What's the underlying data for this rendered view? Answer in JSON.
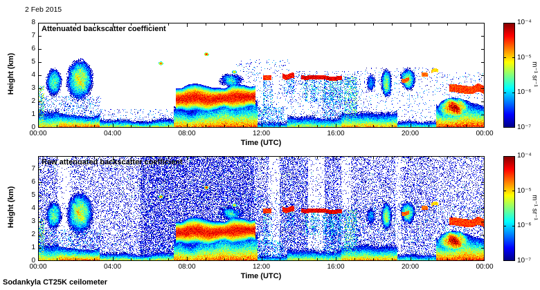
{
  "header": {
    "date": "2 Feb 2015"
  },
  "footer": {
    "instrument": "Sodankyla CT25K ceilometer"
  },
  "colors": {
    "plot_border": "#000000",
    "background": "#ffffff"
  },
  "chart_data": [
    {
      "type": "heatmap",
      "title": "Attenuated backscatter coefficient",
      "xlabel": "Time (UTC)",
      "ylabel": "Height (km)",
      "x_range_hours": [
        0,
        24
      ],
      "y_range_km": [
        0,
        8
      ],
      "x_tick_labels": [
        "00:00",
        "04:00",
        "08:00",
        "12:00",
        "16:00",
        "20:00",
        "00:00"
      ],
      "x_tick_hours": [
        0,
        4,
        8,
        12,
        16,
        20,
        24
      ],
      "y_tick_values": [
        0,
        1,
        2,
        3,
        4,
        5,
        6,
        7,
        8
      ],
      "colormap": "jet",
      "value_scale": "log10",
      "value_range": [
        -7,
        -4
      ],
      "colorbar": {
        "tick_labels": [
          "10⁻⁴",
          "10⁻⁵",
          "10⁻⁶",
          "10⁻⁷"
        ],
        "tick_levels": [
          -4,
          -5,
          -6,
          -7
        ],
        "unit": "m⁻¹ sr⁻¹"
      },
      "features": [
        {
          "type": "bl",
          "t0": 0,
          "t1": 1.1,
          "htop": 1.4,
          "val": -4.6,
          "seed": 1
        },
        {
          "type": "bl",
          "t0": 1.1,
          "t1": 3.3,
          "htop": 1.1,
          "val": -4.15,
          "seed": 2
        },
        {
          "type": "bl",
          "t0": 3.3,
          "t1": 7.3,
          "htop": 0.75,
          "val": -4.7,
          "seed": 3
        },
        {
          "type": "bl",
          "t0": 7.3,
          "t1": 9.0,
          "htop": 1.7,
          "val": -4.3,
          "seed": 4
        },
        {
          "type": "bl",
          "t0": 9.0,
          "t1": 11.8,
          "htop": 2.1,
          "val": -4.2,
          "seed": 5
        },
        {
          "type": "bl",
          "t0": 11.8,
          "t1": 13.4,
          "htop": 0.9,
          "val": -5.3,
          "seed": 6
        },
        {
          "type": "bl",
          "t0": 13.4,
          "t1": 16.3,
          "htop": 1.15,
          "val": -4.75,
          "seed": 7
        },
        {
          "type": "bl",
          "t0": 16.3,
          "t1": 19.3,
          "htop": 1.25,
          "val": -4.4,
          "seed": 8
        },
        {
          "type": "bl",
          "t0": 19.3,
          "t1": 21.4,
          "htop": 0.85,
          "val": -5.1,
          "seed": 9
        },
        {
          "type": "bl",
          "t0": 21.4,
          "t1": 24,
          "htop": 1.9,
          "val": -4.05,
          "seed": 10
        },
        {
          "type": "column",
          "t0": 0.0,
          "t1": 0.35,
          "h0": 0,
          "h1": 3.2,
          "p": 0.5,
          "val": -5.8,
          "seed": 38
        },
        {
          "type": "blob",
          "t0": 0.35,
          "t1": 1.35,
          "h0": 2.2,
          "h1": 4.7,
          "val": -5.1,
          "seed": 11
        },
        {
          "type": "blob",
          "t0": 1.45,
          "t1": 3.0,
          "h0": 1.9,
          "h1": 5.3,
          "val": -4.8,
          "seed": 12
        },
        {
          "type": "band",
          "t0": 7.4,
          "t1": 11.7,
          "h0": 1.3,
          "h1": 3.1,
          "val": -4.15,
          "seed": 13
        },
        {
          "type": "blob",
          "t0": 9.5,
          "t1": 11.3,
          "h0": 2.9,
          "h1": 4.3,
          "val": -5.5,
          "seed": 14
        },
        {
          "type": "line",
          "t0": 12.1,
          "t1": 12.55,
          "h": 3.75,
          "w": 0.18,
          "val": -4.3,
          "seed": 15
        },
        {
          "type": "virga",
          "t0": 12.1,
          "t1": 12.6,
          "h0": 1.2,
          "h1": 3.7,
          "val": -6.2,
          "seed": 40
        },
        {
          "type": "line",
          "t0": 13.15,
          "t1": 13.75,
          "h": 3.95,
          "w": 0.2,
          "val": -4.2,
          "seed": 16
        },
        {
          "type": "virga",
          "t0": 13.2,
          "t1": 13.75,
          "h0": 2.6,
          "h1": 3.9,
          "val": -6.3,
          "seed": 41
        },
        {
          "type": "line",
          "t0": 14.15,
          "t1": 16.35,
          "h": 3.85,
          "w": 0.16,
          "val": -4.1,
          "seed": 17
        },
        {
          "type": "virga",
          "t0": 14.2,
          "t1": 16.3,
          "h0": 2.0,
          "h1": 3.8,
          "val": -6.1,
          "seed": 18
        },
        {
          "type": "column",
          "t0": 16.45,
          "t1": 17.15,
          "h0": 0,
          "h1": 3.9,
          "p": 0.5,
          "val": -6.0,
          "seed": 19
        },
        {
          "type": "blob",
          "t0": 17.55,
          "t1": 18.25,
          "h0": 2.5,
          "h1": 4.4,
          "val": -5.5,
          "seed": 20
        },
        {
          "type": "blob",
          "t0": 18.4,
          "t1": 19.05,
          "h0": 2.1,
          "h1": 4.7,
          "val": -5.2,
          "seed": 21
        },
        {
          "type": "blob",
          "t0": 19.4,
          "t1": 20.35,
          "h0": 2.7,
          "h1": 4.7,
          "val": -5.0,
          "seed": 22
        },
        {
          "type": "line",
          "t0": 19.55,
          "t1": 19.95,
          "h": 3.6,
          "w": 0.15,
          "val": -4.45,
          "seed": 23
        },
        {
          "type": "line",
          "t0": 20.6,
          "t1": 20.95,
          "h": 4.0,
          "w": 0.15,
          "val": -4.5,
          "seed": 24
        },
        {
          "type": "line",
          "t0": 21.15,
          "t1": 21.5,
          "h": 4.3,
          "w": 0.13,
          "val": -4.8,
          "seed": 25
        },
        {
          "type": "line",
          "t0": 22.1,
          "t1": 24,
          "h": 2.95,
          "w": 0.3,
          "val": -4.35,
          "seed": 26
        },
        {
          "type": "blob",
          "t0": 21.5,
          "t1": 23.2,
          "h0": 0.7,
          "h1": 2.3,
          "val": -4.0,
          "seed": 27
        },
        {
          "type": "speck",
          "t": 6.6,
          "h": 4.9,
          "val": -4.6,
          "seed": 28
        },
        {
          "type": "speck",
          "t": 9.05,
          "h": 5.6,
          "val": -4.4,
          "seed": 29
        },
        {
          "type": "speck",
          "t": 10.55,
          "h": 4.25,
          "val": -4.9,
          "seed": 30
        },
        {
          "type": "speckle",
          "t0": 0,
          "t1": 3.4,
          "h0": 0,
          "h1": 2.4,
          "p": 0.22,
          "val": -6.5,
          "seed": 31
        },
        {
          "type": "speckle",
          "t0": 3.4,
          "t1": 7.4,
          "h0": 0,
          "h1": 1.4,
          "p": 0.12,
          "val": -6.6,
          "seed": 39
        },
        {
          "type": "speckle",
          "t0": 10.6,
          "t1": 13.6,
          "h0": 0,
          "h1": 5.2,
          "p": 0.07,
          "val": -6.6,
          "seed": 32
        },
        {
          "type": "speckle",
          "t0": 11.5,
          "t1": 13.2,
          "h0": 0,
          "h1": 1.6,
          "p": 0.3,
          "val": -6.3,
          "seed": 33
        },
        {
          "type": "speckle",
          "t0": 13.6,
          "t1": 17.6,
          "h0": 0,
          "h1": 4.3,
          "p": 0.1,
          "val": -6.6,
          "seed": 34
        },
        {
          "type": "speckle",
          "t0": 15.3,
          "t1": 16.4,
          "h0": 0,
          "h1": 3.8,
          "p": 0.3,
          "val": -6.4,
          "seed": 35
        },
        {
          "type": "speckle",
          "t0": 17.6,
          "t1": 21.4,
          "h0": 0,
          "h1": 4.6,
          "p": 0.06,
          "val": -6.6,
          "seed": 36
        },
        {
          "type": "speckle",
          "t0": 21.4,
          "t1": 24,
          "h0": 2.2,
          "h1": 4.2,
          "p": 0.08,
          "val": -6.5,
          "seed": 37
        }
      ]
    },
    {
      "type": "heatmap",
      "title": "Raw attenuated backscatter coefficient",
      "xlabel": "Time (UTC)",
      "ylabel": "Height (km)",
      "x_range_hours": [
        0,
        24
      ],
      "y_range_km": [
        0,
        8
      ],
      "x_tick_labels": [
        "00:00",
        "04:00",
        "08:00",
        "12:00",
        "16:00",
        "20:00",
        "00:00"
      ],
      "x_tick_hours": [
        0,
        4,
        8,
        12,
        16,
        20,
        24
      ],
      "y_tick_values": [
        0,
        1,
        2,
        3,
        4,
        5,
        6,
        7
      ],
      "colormap": "jet",
      "value_scale": "log10",
      "value_range": [
        -7,
        -4
      ],
      "colorbar": {
        "tick_labels": [
          "10⁻⁴",
          "10⁻⁵",
          "10⁻⁶",
          "10⁻⁷"
        ],
        "tick_levels": [
          -4,
          -5,
          -6,
          -7
        ],
        "unit": "m⁻¹ sr⁻¹"
      },
      "features_same_as_panel": 0,
      "noise_segments": [
        {
          "t0": 0,
          "t1": 1.05,
          "p": 0.32
        },
        {
          "t0": 1.05,
          "t1": 1.7,
          "p": 0.05
        },
        {
          "t0": 1.7,
          "t1": 5.5,
          "p": 0.24
        },
        {
          "t0": 5.5,
          "t1": 11.6,
          "p": 0.55
        },
        {
          "t0": 11.6,
          "t1": 12.4,
          "p": 0.32
        },
        {
          "t0": 12.4,
          "t1": 13.0,
          "p": 0.07
        },
        {
          "t0": 13.0,
          "t1": 14.5,
          "p": 0.42
        },
        {
          "t0": 14.5,
          "t1": 15.4,
          "p": 0.06
        },
        {
          "t0": 15.4,
          "t1": 16.3,
          "p": 0.38
        },
        {
          "t0": 16.3,
          "t1": 16.8,
          "p": 0.08
        },
        {
          "t0": 16.8,
          "t1": 19.2,
          "p": 0.3
        },
        {
          "t0": 19.2,
          "t1": 19.5,
          "p": 0.1
        },
        {
          "t0": 19.5,
          "t1": 21.3,
          "p": 0.28
        },
        {
          "t0": 21.3,
          "t1": 24,
          "p": 0.22
        }
      ]
    }
  ]
}
